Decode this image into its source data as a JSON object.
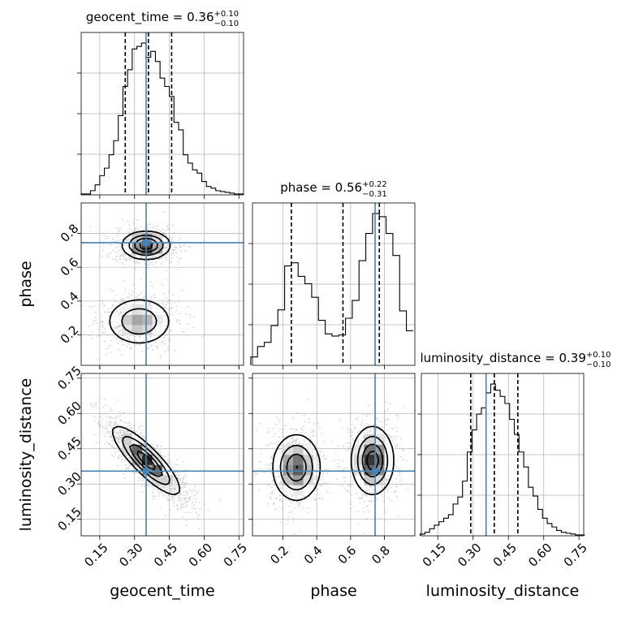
{
  "chart_data": {
    "type": "corner",
    "parameters": [
      "geocent_time",
      "phase",
      "luminosity_distance"
    ],
    "truth": {
      "geocent_time": 0.35,
      "phase": 0.745,
      "luminosity_distance": 0.355
    },
    "colors": {
      "truth": "#4682b4",
      "hist": "#000000",
      "grid": "#b0b0b0"
    },
    "grid": true,
    "axes": {
      "geocent_time": {
        "range": [
          0.07,
          0.77
        ],
        "ticks": [
          0.15,
          0.3,
          0.45,
          0.6,
          0.75
        ],
        "tick_labels": [
          "0.15",
          "0.30",
          "0.45",
          "0.60",
          "0.75"
        ]
      },
      "phase": {
        "range": [
          0.02,
          0.98
        ],
        "ticks": [
          0.2,
          0.4,
          0.6,
          0.8
        ],
        "tick_labels": [
          "0.2",
          "0.4",
          "0.6",
          "0.8"
        ]
      },
      "luminosity_distance": {
        "range": [
          0.08,
          0.77
        ],
        "ticks": [
          0.15,
          0.3,
          0.45,
          0.6,
          0.75
        ],
        "tick_labels": [
          "0.15",
          "0.30",
          "0.45",
          "0.60",
          "0.75"
        ]
      }
    },
    "histograms": [
      {
        "parameter": "geocent_time",
        "title": {
          "main": "geocent_time = 0.36",
          "sup": "+0.10",
          "sub": "−0.10"
        },
        "quantiles": [
          0.26,
          0.36,
          0.46
        ],
        "bin_centers": [
          0.08,
          0.1,
          0.12,
          0.14,
          0.16,
          0.18,
          0.2,
          0.22,
          0.24,
          0.26,
          0.28,
          0.3,
          0.32,
          0.34,
          0.36,
          0.38,
          0.4,
          0.42,
          0.44,
          0.46,
          0.48,
          0.5,
          0.52,
          0.54,
          0.56,
          0.58,
          0.6,
          0.62,
          0.64,
          0.66,
          0.68,
          0.7,
          0.72,
          0.74,
          0.76
        ],
        "counts": [
          1,
          1,
          5,
          12,
          23,
          32,
          48,
          65,
          95,
          130,
          150,
          175,
          178,
          182,
          165,
          172,
          160,
          140,
          130,
          118,
          87,
          78,
          48,
          38,
          30,
          26,
          16,
          10,
          8,
          5,
          4,
          3,
          2,
          1,
          1
        ]
      },
      {
        "parameter": "phase",
        "title": {
          "main": "phase = 0.56",
          "sup": "+0.22",
          "sub": "−0.31"
        },
        "quantiles": [
          0.25,
          0.555,
          0.77
        ],
        "bin_centers": [
          0.03,
          0.07,
          0.11,
          0.15,
          0.19,
          0.23,
          0.27,
          0.31,
          0.35,
          0.39,
          0.43,
          0.47,
          0.51,
          0.55,
          0.59,
          0.63,
          0.67,
          0.71,
          0.75,
          0.79,
          0.83,
          0.87,
          0.91,
          0.95
        ],
        "counts": [
          8,
          18,
          22,
          38,
          53,
          95,
          98,
          85,
          78,
          65,
          43,
          30,
          28,
          29,
          45,
          62,
          100,
          126,
          145,
          142,
          126,
          105,
          52,
          33
        ]
      },
      {
        "parameter": "luminosity_distance",
        "title": {
          "main": "luminosity_distance = 0.39",
          "sup": "+0.10",
          "sub": "−0.10"
        },
        "quantiles": [
          0.29,
          0.39,
          0.49
        ],
        "bin_centers": [
          0.085,
          0.105,
          0.125,
          0.145,
          0.165,
          0.185,
          0.205,
          0.225,
          0.245,
          0.265,
          0.285,
          0.305,
          0.325,
          0.345,
          0.365,
          0.385,
          0.405,
          0.425,
          0.445,
          0.465,
          0.485,
          0.505,
          0.525,
          0.545,
          0.565,
          0.585,
          0.605,
          0.625,
          0.645,
          0.665,
          0.685,
          0.705,
          0.725,
          0.745,
          0.765
        ],
        "counts": [
          2,
          4,
          8,
          12,
          16,
          20,
          24,
          36,
          44,
          62,
          95,
          120,
          138,
          145,
          162,
          172,
          165,
          158,
          150,
          132,
          115,
          95,
          78,
          55,
          45,
          30,
          20,
          14,
          10,
          6,
          4,
          3,
          2,
          1,
          1
        ]
      }
    ],
    "contour_panels": [
      {
        "x": "geocent_time",
        "y": "phase",
        "modes": [
          {
            "center": [
              0.35,
              0.73
            ],
            "sigma": [
              0.05,
              0.04
            ],
            "weight": 1.0
          },
          {
            "center": [
              0.32,
              0.28
            ],
            "sigma": [
              0.07,
              0.07
            ],
            "weight": 0.6
          }
        ]
      },
      {
        "x": "geocent_time",
        "y": "luminosity_distance",
        "modes": [
          {
            "center": [
              0.35,
              0.4
            ],
            "sigma": [
              0.07,
              0.07
            ],
            "rho": -0.85,
            "weight": 1.0
          }
        ]
      },
      {
        "x": "phase",
        "y": "luminosity_distance",
        "modes": [
          {
            "center": [
              0.28,
              0.37
            ],
            "sigma": [
              0.07,
              0.07
            ],
            "weight": 0.85
          },
          {
            "center": [
              0.73,
              0.4
            ],
            "sigma": [
              0.06,
              0.07
            ],
            "weight": 1.0
          }
        ]
      }
    ]
  }
}
